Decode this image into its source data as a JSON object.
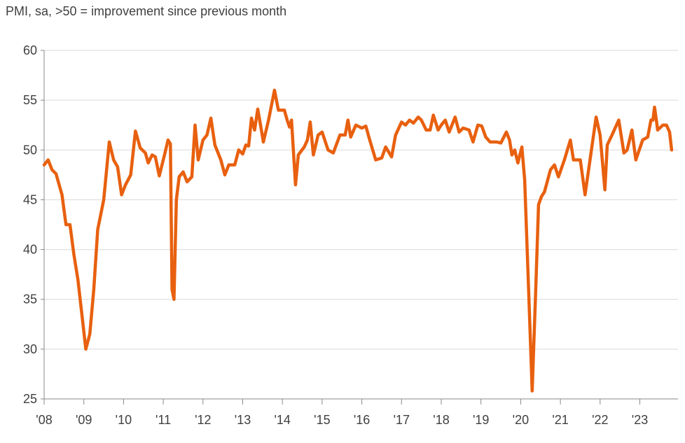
{
  "chart_data": {
    "type": "line",
    "title": "PMI, sa, >50 = improvement since previous month",
    "xlabel": "",
    "ylabel": "",
    "ylim": [
      25,
      60
    ],
    "xlim": [
      2008,
      2023.85
    ],
    "grid": true,
    "color": "#E8600F",
    "yticks": [
      25,
      30,
      35,
      40,
      45,
      50,
      55,
      60
    ],
    "xticks": [
      {
        "year": 2008,
        "label": "'08"
      },
      {
        "year": 2009,
        "label": "'09"
      },
      {
        "year": 2010,
        "label": "'10"
      },
      {
        "year": 2011,
        "label": "'11"
      },
      {
        "year": 2012,
        "label": "'12"
      },
      {
        "year": 2013,
        "label": "'13"
      },
      {
        "year": 2014,
        "label": "'14"
      },
      {
        "year": 2015,
        "label": "'15"
      },
      {
        "year": 2016,
        "label": "'16"
      },
      {
        "year": 2017,
        "label": "'17"
      },
      {
        "year": 2018,
        "label": "'18"
      },
      {
        "year": 2019,
        "label": "'19"
      },
      {
        "year": 2020,
        "label": "'20"
      },
      {
        "year": 2021,
        "label": "'21"
      },
      {
        "year": 2022,
        "label": "'22"
      },
      {
        "year": 2023,
        "label": "'23"
      }
    ],
    "series": [
      {
        "name": "PMI",
        "points": [
          [
            2008.0,
            48.5
          ],
          [
            2008.1,
            49
          ],
          [
            2008.2,
            48
          ],
          [
            2008.3,
            47.6
          ],
          [
            2008.45,
            45.5
          ],
          [
            2008.55,
            42.5
          ],
          [
            2008.65,
            42.5
          ],
          [
            2008.75,
            39.5
          ],
          [
            2008.85,
            37
          ],
          [
            2008.95,
            33.5
          ],
          [
            2009.05,
            30
          ],
          [
            2009.15,
            31.5
          ],
          [
            2009.25,
            36
          ],
          [
            2009.35,
            42
          ],
          [
            2009.5,
            45
          ],
          [
            2009.64,
            50.8
          ],
          [
            2009.75,
            49
          ],
          [
            2009.85,
            48.3
          ],
          [
            2009.95,
            45.5
          ],
          [
            2010.05,
            46.5
          ],
          [
            2010.18,
            47.5
          ],
          [
            2010.3,
            51.9
          ],
          [
            2010.42,
            50.2
          ],
          [
            2010.55,
            49.7
          ],
          [
            2010.62,
            48.7
          ],
          [
            2010.72,
            49.5
          ],
          [
            2010.8,
            49.3
          ],
          [
            2010.9,
            47.4
          ],
          [
            2011.0,
            49
          ],
          [
            2011.05,
            49.8
          ],
          [
            2011.12,
            51
          ],
          [
            2011.18,
            50.6
          ],
          [
            2011.22,
            36
          ],
          [
            2011.27,
            35
          ],
          [
            2011.33,
            45
          ],
          [
            2011.4,
            47.3
          ],
          [
            2011.5,
            47.8
          ],
          [
            2011.6,
            46.8
          ],
          [
            2011.72,
            47.3
          ],
          [
            2011.8,
            52.5
          ],
          [
            2011.88,
            49
          ],
          [
            2012.0,
            51
          ],
          [
            2012.1,
            51.5
          ],
          [
            2012.2,
            53.2
          ],
          [
            2012.3,
            50.5
          ],
          [
            2012.45,
            49
          ],
          [
            2012.55,
            47.5
          ],
          [
            2012.65,
            48.5
          ],
          [
            2012.8,
            48.5
          ],
          [
            2012.9,
            50
          ],
          [
            2013.0,
            49.6
          ],
          [
            2013.08,
            50.5
          ],
          [
            2013.15,
            50.4
          ],
          [
            2013.22,
            53.2
          ],
          [
            2013.3,
            52
          ],
          [
            2013.38,
            54.1
          ],
          [
            2013.45,
            52.5
          ],
          [
            2013.52,
            50.8
          ],
          [
            2013.65,
            53
          ],
          [
            2013.8,
            56
          ],
          [
            2013.9,
            54
          ],
          [
            2014.05,
            54
          ],
          [
            2014.12,
            53
          ],
          [
            2014.18,
            52.3
          ],
          [
            2014.23,
            53
          ],
          [
            2014.33,
            46.5
          ],
          [
            2014.4,
            49.5
          ],
          [
            2014.55,
            50.3
          ],
          [
            2014.63,
            51
          ],
          [
            2014.7,
            52.8
          ],
          [
            2014.78,
            49.5
          ],
          [
            2014.9,
            51.5
          ],
          [
            2015.0,
            51.8
          ],
          [
            2015.15,
            50
          ],
          [
            2015.28,
            49.7
          ],
          [
            2015.45,
            51.5
          ],
          [
            2015.58,
            51.5
          ],
          [
            2015.65,
            53
          ],
          [
            2015.72,
            51.3
          ],
          [
            2015.85,
            52.5
          ],
          [
            2016.0,
            52.2
          ],
          [
            2016.1,
            52.4
          ],
          [
            2016.2,
            51
          ],
          [
            2016.35,
            49
          ],
          [
            2016.5,
            49.2
          ],
          [
            2016.6,
            50.3
          ],
          [
            2016.75,
            49.3
          ],
          [
            2016.85,
            51.5
          ],
          [
            2017.0,
            52.8
          ],
          [
            2017.1,
            52.5
          ],
          [
            2017.2,
            53
          ],
          [
            2017.3,
            52.7
          ],
          [
            2017.42,
            53.3
          ],
          [
            2017.5,
            53
          ],
          [
            2017.62,
            52
          ],
          [
            2017.72,
            52
          ],
          [
            2017.8,
            53.5
          ],
          [
            2017.92,
            52
          ],
          [
            2018.0,
            52.5
          ],
          [
            2018.1,
            53
          ],
          [
            2018.2,
            51.8
          ],
          [
            2018.35,
            53.3
          ],
          [
            2018.45,
            51.8
          ],
          [
            2018.55,
            52.2
          ],
          [
            2018.7,
            52
          ],
          [
            2018.8,
            50.8
          ],
          [
            2018.92,
            52.5
          ],
          [
            2019.02,
            52.4
          ],
          [
            2019.12,
            51.3
          ],
          [
            2019.23,
            50.8
          ],
          [
            2019.4,
            50.8
          ],
          [
            2019.5,
            50.7
          ],
          [
            2019.64,
            51.8
          ],
          [
            2019.72,
            51
          ],
          [
            2019.78,
            49.5
          ],
          [
            2019.85,
            50
          ],
          [
            2019.93,
            48.7
          ],
          [
            2020.03,
            50.3
          ],
          [
            2020.1,
            47
          ],
          [
            2020.2,
            36
          ],
          [
            2020.29,
            25.8
          ],
          [
            2020.38,
            36
          ],
          [
            2020.45,
            44.5
          ],
          [
            2020.52,
            45.3
          ],
          [
            2020.6,
            45.8
          ],
          [
            2020.75,
            48
          ],
          [
            2020.85,
            48.5
          ],
          [
            2020.95,
            47.3
          ],
          [
            2021.1,
            49
          ],
          [
            2021.25,
            51
          ],
          [
            2021.33,
            49
          ],
          [
            2021.5,
            49
          ],
          [
            2021.62,
            45.5
          ],
          [
            2021.9,
            53.3
          ],
          [
            2022.0,
            51.5
          ],
          [
            2022.12,
            46
          ],
          [
            2022.18,
            50.5
          ],
          [
            2022.3,
            51.5
          ],
          [
            2022.47,
            53
          ],
          [
            2022.6,
            49.7
          ],
          [
            2022.68,
            50
          ],
          [
            2022.8,
            52
          ],
          [
            2022.9,
            49
          ],
          [
            2023.07,
            51
          ],
          [
            2023.2,
            51.3
          ],
          [
            2023.28,
            53
          ],
          [
            2023.33,
            53
          ],
          [
            2023.37,
            54.3
          ],
          [
            2023.45,
            52
          ],
          [
            2023.58,
            52.5
          ],
          [
            2023.67,
            52.5
          ],
          [
            2023.75,
            51.8
          ],
          [
            2023.8,
            50
          ]
        ]
      }
    ]
  }
}
